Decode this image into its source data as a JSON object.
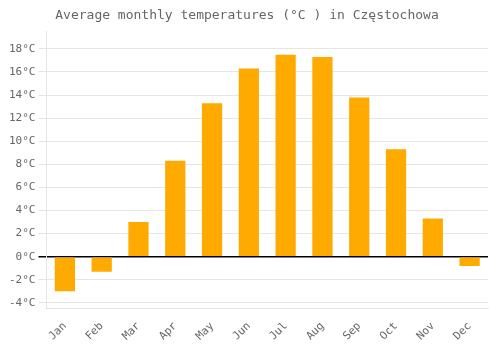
{
  "chart_data": {
    "type": "bar",
    "title": "Average monthly temperatures (°C ) in Częstochowa",
    "categories": [
      "Jan",
      "Feb",
      "Mar",
      "Apr",
      "May",
      "Jun",
      "Jul",
      "Aug",
      "Sep",
      "Oct",
      "Nov",
      "Dec"
    ],
    "values": [
      -3.0,
      -1.3,
      3.0,
      8.3,
      13.3,
      16.3,
      17.5,
      17.3,
      13.8,
      9.3,
      3.3,
      -0.8
    ],
    "color": "#FFAA00",
    "ylim": [
      -4.5,
      19.5
    ],
    "yticks": [
      {
        "value": -4,
        "label": "-4°C"
      },
      {
        "value": -2,
        "label": "-2°C"
      },
      {
        "value": 0,
        "label": "0°C"
      },
      {
        "value": 2,
        "label": "2°C"
      },
      {
        "value": 4,
        "label": "4°C"
      },
      {
        "value": 6,
        "label": "6°C"
      },
      {
        "value": 8,
        "label": "8°C"
      },
      {
        "value": 10,
        "label": "10°C"
      },
      {
        "value": 12,
        "label": "12°C"
      },
      {
        "value": 14,
        "label": "14°C"
      },
      {
        "value": 16,
        "label": "16°C"
      },
      {
        "value": 18,
        "label": "18°C"
      }
    ],
    "grid": true
  }
}
